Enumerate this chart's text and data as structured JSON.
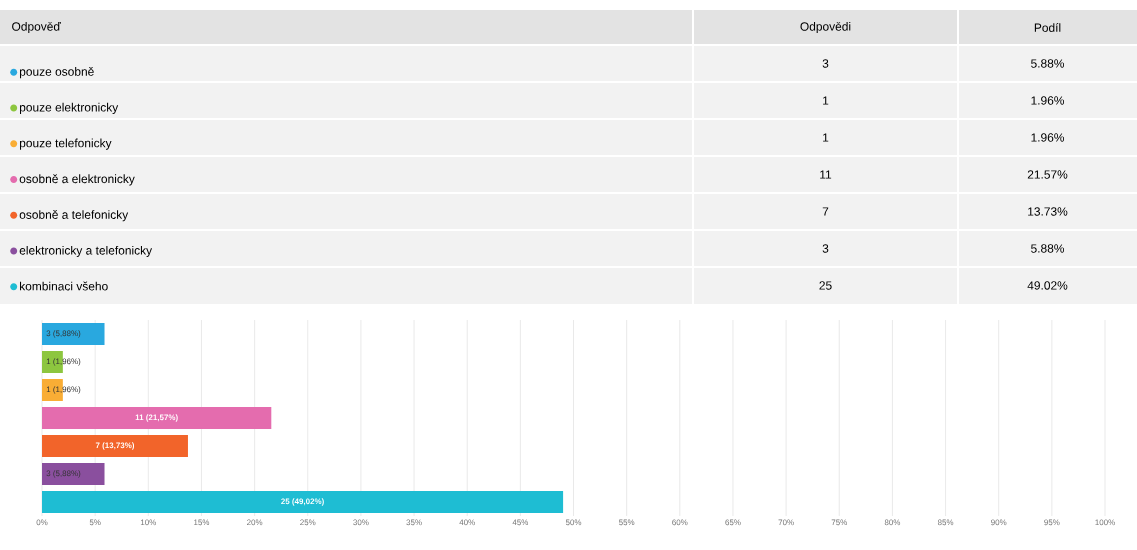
{
  "chart_data": {
    "type": "bar",
    "orientation": "horizontal",
    "categories": [
      null,
      null,
      null,
      null,
      null,
      null,
      null
    ],
    "series": [
      {
        "name": "pouze osobně",
        "color": "#29a8df",
        "values": [
          5.88,
          null,
          null,
          null,
          null,
          null,
          null
        ],
        "value_labels": [
          "3 (5,88%)",
          null,
          null,
          null,
          null,
          null,
          null
        ]
      },
      {
        "name": "pouze elektronicky",
        "color": "#8dc63f",
        "values": [
          null,
          1.96,
          null,
          null,
          null,
          null,
          null
        ],
        "value_labels": [
          null,
          "1 (1,96%)",
          null,
          null,
          null,
          null,
          null
        ]
      },
      {
        "name": "pouze telefonicky",
        "color": "#f9ad35",
        "values": [
          null,
          null,
          1.96,
          null,
          null,
          null,
          null
        ],
        "value_labels": [
          null,
          null,
          "1 (1,96%)",
          null,
          null,
          null,
          null
        ]
      },
      {
        "name": "osobně a elektronicky",
        "color": "#e46cae",
        "values": [
          null,
          null,
          null,
          21.57,
          null,
          null,
          null
        ],
        "value_labels": [
          null,
          null,
          null,
          "11 (21,57%)",
          null,
          null,
          null
        ]
      },
      {
        "name": "osobně a telefonicky",
        "color": "#f2642a",
        "values": [
          null,
          null,
          null,
          null,
          13.73,
          null,
          null
        ],
        "value_labels": [
          null,
          null,
          null,
          null,
          "7 (13,73%)",
          null,
          null
        ]
      },
      {
        "name": "elektronicky a telefonicky",
        "color": "#8a4f9e",
        "values": [
          null,
          null,
          null,
          null,
          null,
          5.88,
          null
        ],
        "value_labels": [
          null,
          null,
          null,
          null,
          null,
          "3 (5,88%)",
          null
        ]
      },
      {
        "name": "kombinaci všeho",
        "color": "#1ebdd3",
        "values": [
          null,
          null,
          null,
          null,
          null,
          null,
          49.02
        ],
        "value_labels": [
          null,
          null,
          null,
          null,
          null,
          null,
          "25 (49,02%)"
        ]
      }
    ],
    "xlim": [
      0,
      100
    ],
    "xticks": [
      {
        "value": 0,
        "label": "0%"
      },
      {
        "value": 5,
        "label": "5%"
      },
      {
        "value": 10,
        "label": "10%"
      },
      {
        "value": 15,
        "label": "15%"
      },
      {
        "value": 20,
        "label": "20%"
      },
      {
        "value": 25,
        "label": "25%"
      },
      {
        "value": 30,
        "label": "30%"
      },
      {
        "value": 35,
        "label": "35%"
      },
      {
        "value": 40,
        "label": "40%"
      },
      {
        "value": 45,
        "label": "45%"
      },
      {
        "value": 50,
        "label": "50%"
      },
      {
        "value": 55,
        "label": "55%"
      },
      {
        "value": 60,
        "label": "60%"
      },
      {
        "value": 65,
        "label": "65%"
      },
      {
        "value": 70,
        "label": "70%"
      },
      {
        "value": 75,
        "label": "75%"
      },
      {
        "value": 80,
        "label": "80%"
      },
      {
        "value": 85,
        "label": "85%"
      },
      {
        "value": 90,
        "label": "90%"
      },
      {
        "value": 95,
        "label": "95%"
      },
      {
        "value": 100,
        "label": "100%"
      }
    ],
    "grid": "x",
    "legend": "top",
    "tick_labels": "x",
    "annotations": [
      "Odpověď",
      "Odpovědi",
      "Podíl",
      "3",
      "5.88%",
      "1",
      "1.96%",
      "1",
      "1.96%",
      "11",
      "21.57%",
      "7",
      "13.73%",
      "3",
      "5.88%",
      "25",
      "49.02%"
    ]
  }
}
